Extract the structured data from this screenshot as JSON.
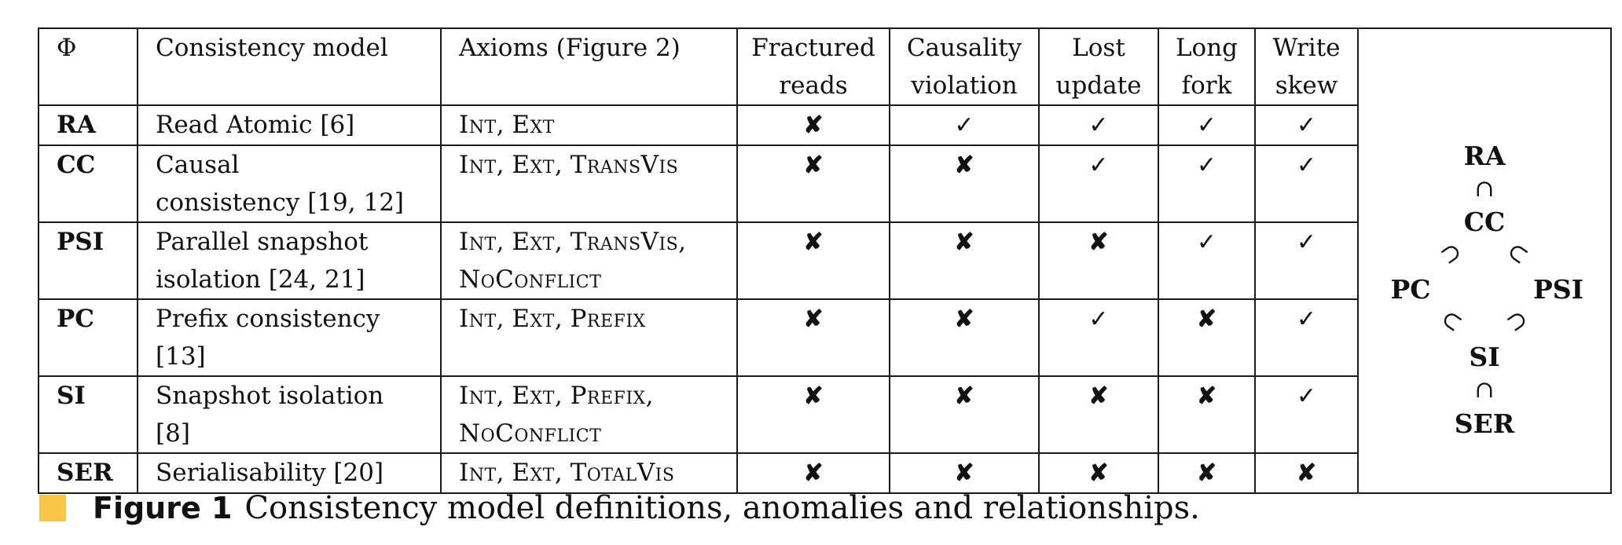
{
  "table": {
    "headers": [
      {
        "key": "phi",
        "lines": [
          "Φ"
        ]
      },
      {
        "key": "model",
        "lines": [
          "Consistency model"
        ]
      },
      {
        "key": "axioms",
        "lines": [
          "Axioms (Figure 2)"
        ]
      },
      {
        "key": "fractured",
        "lines": [
          "Fractured",
          "reads"
        ]
      },
      {
        "key": "causality",
        "lines": [
          "Causality",
          "violation"
        ]
      },
      {
        "key": "lost",
        "lines": [
          "Lost",
          "update"
        ]
      },
      {
        "key": "longfork",
        "lines": [
          "Long",
          "fork"
        ]
      },
      {
        "key": "writeskew",
        "lines": [
          "Write",
          "skew"
        ]
      }
    ],
    "rows": [
      {
        "abbr": "RA",
        "model_lines": [
          "Read Atomic [6]"
        ],
        "axiom_lines": [
          [
            "Int",
            "Ext"
          ]
        ],
        "anomalies": [
          false,
          true,
          true,
          true,
          true
        ]
      },
      {
        "abbr": "CC",
        "model_lines": [
          "Causal",
          "consistency [19, 12]"
        ],
        "axiom_lines": [
          [
            "Int",
            "Ext",
            "TransVis"
          ]
        ],
        "anomalies": [
          false,
          false,
          true,
          true,
          true
        ]
      },
      {
        "abbr": "PSI",
        "model_lines": [
          "Parallel snapshot",
          "isolation [24, 21]"
        ],
        "axiom_lines": [
          [
            "Int",
            "Ext",
            "TransVis,"
          ],
          [
            "NoConflict"
          ]
        ],
        "anomalies": [
          false,
          false,
          false,
          true,
          true
        ]
      },
      {
        "abbr": "PC",
        "model_lines": [
          "Prefix consistency [13]"
        ],
        "axiom_lines": [
          [
            "Int",
            "Ext",
            "Prefix"
          ]
        ],
        "anomalies": [
          false,
          false,
          true,
          false,
          true
        ]
      },
      {
        "abbr": "SI",
        "model_lines": [
          "Snapshot isolation [8]"
        ],
        "axiom_lines": [
          [
            "Int",
            "Ext",
            "Prefix,"
          ],
          [
            "NoConflict"
          ]
        ],
        "anomalies": [
          false,
          false,
          false,
          false,
          true
        ]
      },
      {
        "abbr": "SER",
        "model_lines": [
          "Serialisability [20]"
        ],
        "axiom_lines": [
          [
            "Int",
            "Ext",
            "TotalVis"
          ]
        ],
        "anomalies": [
          false,
          false,
          false,
          false,
          false
        ]
      }
    ],
    "check_glyph": "✓",
    "cross_glyph": "✘"
  },
  "diagram": {
    "nodes": {
      "ra": "RA",
      "cc": "CC",
      "pc": "PC",
      "psi": "PSI",
      "si": "SI",
      "ser": "SER"
    },
    "relations": {
      "ra_cc": "∩",
      "cc_pc": "⊃",
      "cc_psi": "⊂",
      "pc_si": "⊂",
      "psi_si": "⊃",
      "si_ser": "∩"
    }
  },
  "caption": {
    "label": "Figure 1",
    "text": "Consistency model definitions, anomalies and relationships.",
    "marker_color": "#f6c644"
  }
}
